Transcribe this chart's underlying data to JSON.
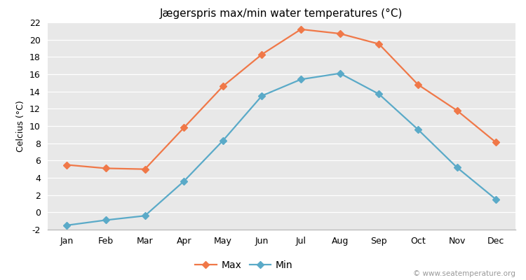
{
  "title": "Jægerspris max/min water temperatures (°C)",
  "ylabel": "Celcius (°C)",
  "months": [
    "Jan",
    "Feb",
    "Mar",
    "Apr",
    "May",
    "Jun",
    "Jul",
    "Aug",
    "Sep",
    "Oct",
    "Nov",
    "Dec"
  ],
  "max_values": [
    5.5,
    5.1,
    5.0,
    9.8,
    14.6,
    18.3,
    21.2,
    20.7,
    19.5,
    14.8,
    11.8,
    8.1
  ],
  "min_values": [
    -1.5,
    -0.9,
    -0.4,
    3.6,
    8.3,
    13.5,
    15.4,
    16.1,
    13.7,
    9.6,
    5.2,
    1.5
  ],
  "max_color": "#f07848",
  "min_color": "#5aaac8",
  "bg_color": "#e8e8e8",
  "fig_color": "#ffffff",
  "grid_color": "#ffffff",
  "ylim": [
    -2,
    22
  ],
  "yticks": [
    -2,
    0,
    2,
    4,
    6,
    8,
    10,
    12,
    14,
    16,
    18,
    20,
    22
  ],
  "legend_labels": [
    "Max",
    "Min"
  ],
  "watermark": "© www.seatemperature.org",
  "marker": "D",
  "markersize": 5,
  "linewidth": 1.6,
  "title_fontsize": 11,
  "axis_fontsize": 9,
  "legend_fontsize": 10
}
